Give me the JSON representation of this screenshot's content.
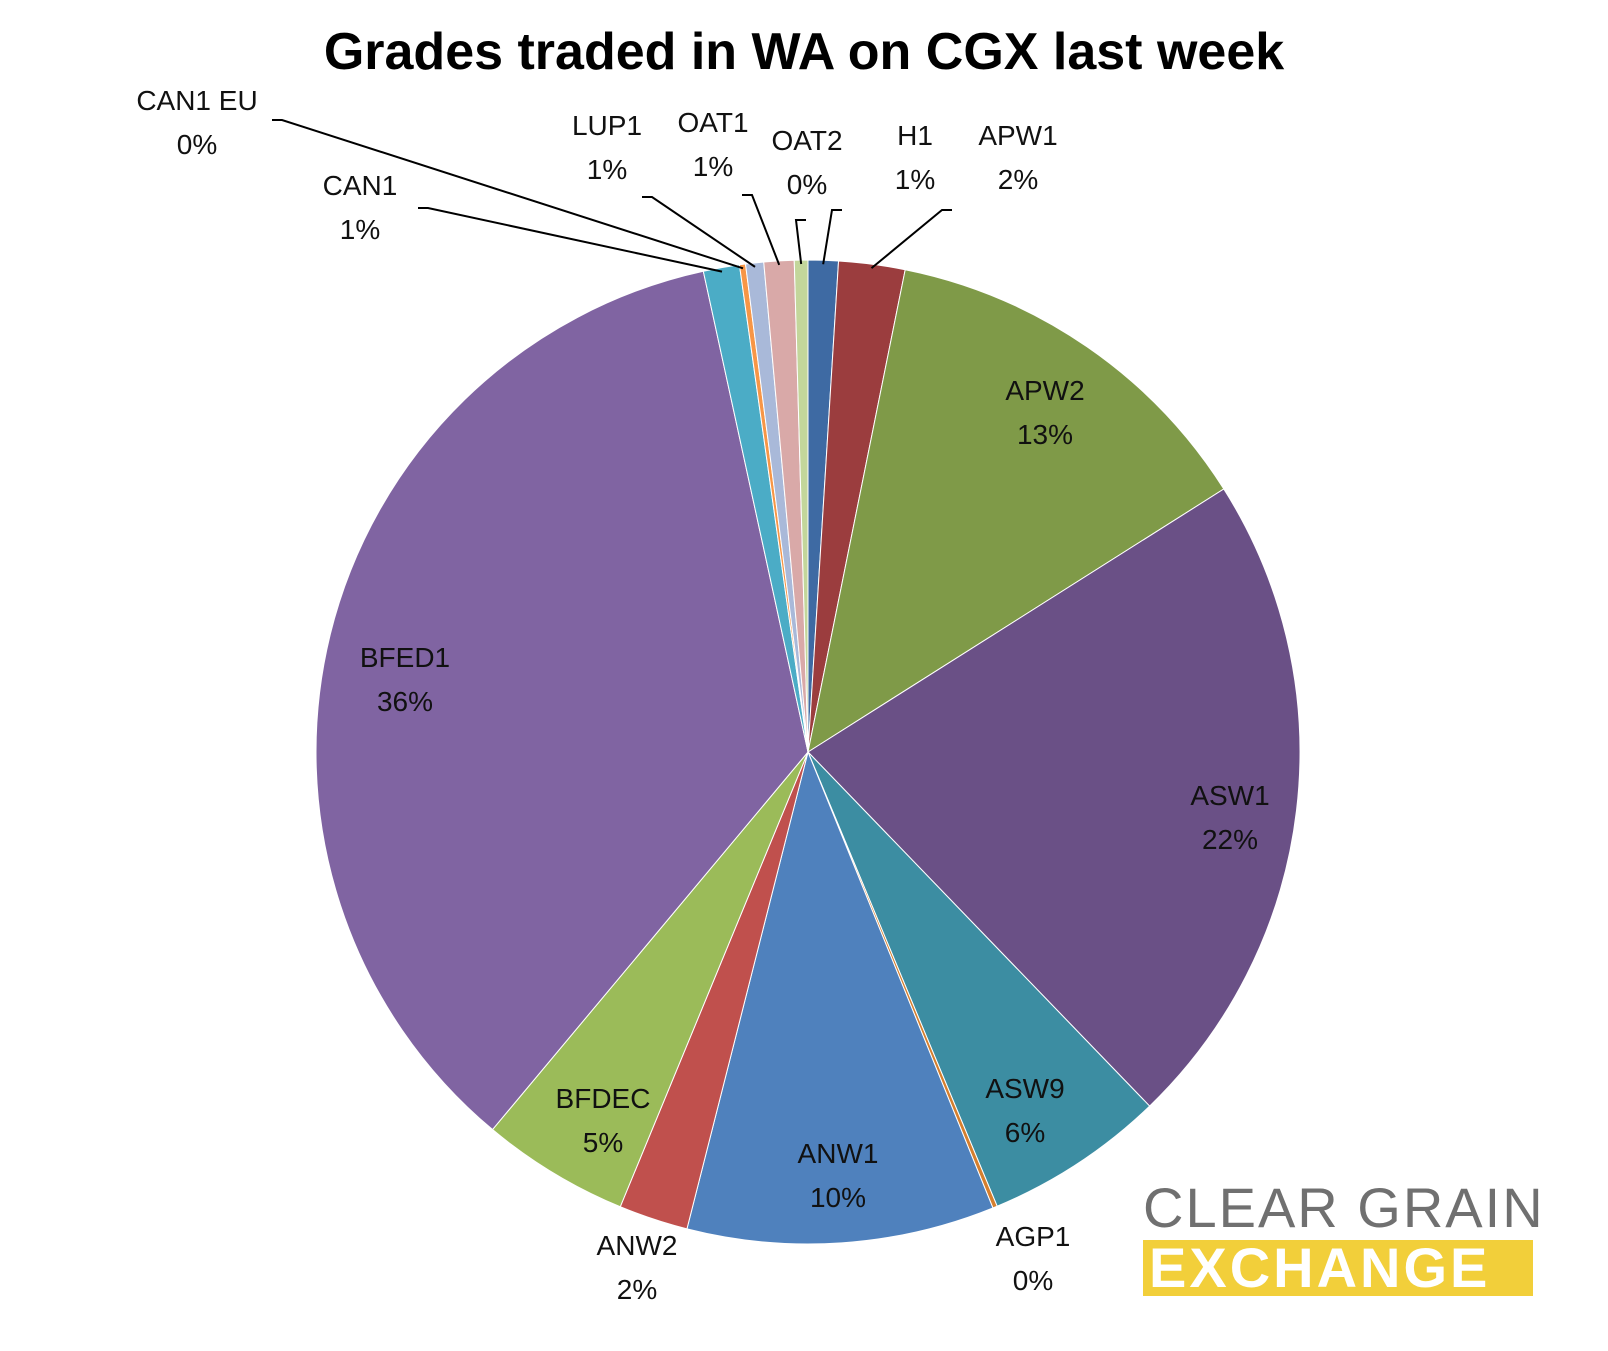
{
  "chart_data": {
    "type": "pie",
    "title": "Grades traded in WA on CGX last week",
    "slices": [
      {
        "label": "H1",
        "pct_label": "1%",
        "value": 1.0,
        "color": "#3e6aa3"
      },
      {
        "label": "APW1",
        "pct_label": "2%",
        "value": 2.2,
        "color": "#9b3d3e"
      },
      {
        "label": "APW2",
        "pct_label": "13%",
        "value": 13.0,
        "color": "#7f9a48"
      },
      {
        "label": "ASW1",
        "pct_label": "22%",
        "value": 22.0,
        "color": "#6a5086"
      },
      {
        "label": "ASW9",
        "pct_label": "6%",
        "value": 6.0,
        "color": "#3c8da2"
      },
      {
        "label": "AGP1",
        "pct_label": "0%",
        "value": 0.15,
        "color": "#d57f2e"
      },
      {
        "label": "ANW1",
        "pct_label": "10%",
        "value": 10.2,
        "color": "#4f81bd"
      },
      {
        "label": "ANW2",
        "pct_label": "2%",
        "value": 2.3,
        "color": "#c0504d"
      },
      {
        "label": "BFDEC",
        "pct_label": "5%",
        "value": 4.9,
        "color": "#9bbb59"
      },
      {
        "label": "BFED1",
        "pct_label": "36%",
        "value": 35.9,
        "color": "#8064a2"
      },
      {
        "label": "CAN1",
        "pct_label": "1%",
        "value": 1.2,
        "color": "#4bacc6"
      },
      {
        "label": "CAN1 EU",
        "pct_label": "0%",
        "value": 0.2,
        "color": "#f79646"
      },
      {
        "label": "LUP1",
        "pct_label": "1%",
        "value": 0.6,
        "color": "#a9b9d9"
      },
      {
        "label": "OAT1",
        "pct_label": "1%",
        "value": 1.0,
        "color": "#d9a9a8"
      },
      {
        "label": "OAT2",
        "pct_label": "0%",
        "value": 0.45,
        "color": "#c3d69b"
      }
    ]
  },
  "logo": {
    "line1": "CLEAR GRAIN",
    "line2": "EXCHANGE"
  }
}
